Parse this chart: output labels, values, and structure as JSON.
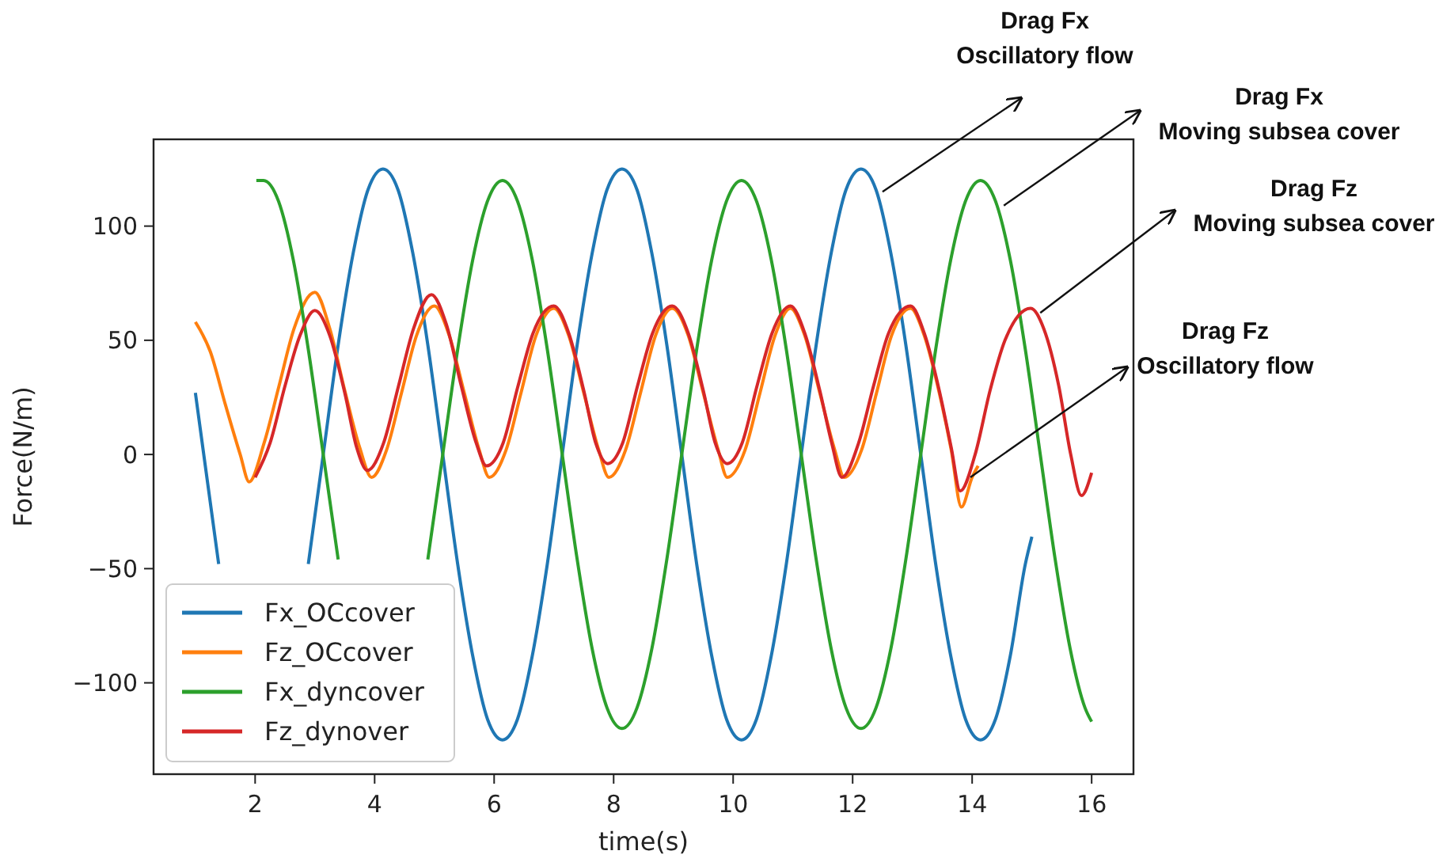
{
  "chart_data": {
    "type": "line",
    "xlabel": "time(s)",
    "ylabel": "Force(N/m)",
    "xlim": [
      0.3,
      16.7
    ],
    "ylim": [
      -140,
      138
    ],
    "xticks": [
      2,
      4,
      6,
      8,
      10,
      12,
      14,
      16
    ],
    "yticks": [
      -100,
      -50,
      0,
      50,
      100
    ],
    "grid": false,
    "legend": "bottom left",
    "marker": "none",
    "line_style": "solid",
    "series": [
      {
        "name": "Fx_OCcover",
        "color": "#1f77b4",
        "x": [
          1,
          1.14,
          1.39,
          1.64,
          1.89,
          2.14,
          2.39,
          2.64,
          2.89,
          3.14,
          3.39,
          3.64,
          3.89,
          4.14,
          4.39,
          4.64,
          4.89,
          5.14,
          5.39,
          5.64,
          5.89,
          6.14,
          6.39,
          6.64,
          6.89,
          7.14,
          7.39,
          7.64,
          7.89,
          8.14,
          8.39,
          8.64,
          8.89,
          9.14,
          9.39,
          9.64,
          9.89,
          10.14,
          10.39,
          10.64,
          10.89,
          11.14,
          11.39,
          11.64,
          11.89,
          12.14,
          12.39,
          12.64,
          12.89,
          13.14,
          13.39,
          13.64,
          13.89,
          14.14,
          14.39,
          14.64,
          14.89,
          15
        ],
        "values": [
          27,
          0,
          -48,
          null,
          null,
          null,
          null,
          null,
          -48,
          0,
          48,
          88,
          116,
          125,
          116,
          88,
          48,
          0,
          -48,
          -88,
          -116,
          -125,
          -116,
          -88,
          -48,
          0,
          48,
          88,
          116,
          125,
          116,
          88,
          48,
          0,
          -48,
          -88,
          -116,
          -125,
          -116,
          -88,
          -48,
          0,
          48,
          88,
          116,
          125,
          116,
          88,
          48,
          0,
          -48,
          -88,
          -116,
          -125,
          -116,
          -88,
          -48,
          -36
        ]
      },
      {
        "name": "Fz_OCcover",
        "color": "#ff7f0e",
        "x": [
          1,
          1.25,
          1.5,
          1.75,
          1.9,
          2.15,
          2.4,
          2.65,
          3,
          3.25,
          3.5,
          3.75,
          3.95,
          4.2,
          4.45,
          4.7,
          5,
          5.25,
          5.5,
          5.75,
          5.92,
          6.2,
          6.45,
          6.7,
          7,
          7.25,
          7.5,
          7.75,
          7.92,
          8.2,
          8.45,
          8.7,
          8.98,
          9.25,
          9.5,
          9.75,
          9.9,
          10.2,
          10.45,
          10.7,
          10.96,
          11.2,
          11.45,
          11.7,
          11.86,
          12.15,
          12.4,
          12.65,
          12.97,
          13.2,
          13.45,
          13.65,
          13.82,
          14,
          14.1
        ],
        "values": [
          58,
          45,
          22,
          0,
          -12,
          5,
          30,
          55,
          71,
          55,
          28,
          3,
          -10,
          2,
          27,
          52,
          65,
          52,
          27,
          2,
          -10,
          2,
          27,
          52,
          64,
          52,
          27,
          2,
          -10,
          2,
          27,
          52,
          64,
          52,
          27,
          2,
          -10,
          2,
          27,
          52,
          64,
          52,
          27,
          2,
          -10,
          2,
          27,
          52,
          64,
          52,
          27,
          2,
          -23,
          -10,
          -5
        ]
      },
      {
        "name": "Fx_dyncover",
        "color": "#2ca02c",
        "x": [
          2.02,
          2.14,
          2.39,
          2.64,
          2.89,
          3.14,
          3.39,
          3.64,
          3.89,
          4.14,
          4.39,
          4.64,
          4.89,
          5.14,
          5.39,
          5.64,
          5.89,
          6.14,
          6.39,
          6.64,
          6.89,
          7.14,
          7.39,
          7.64,
          7.89,
          8.14,
          8.39,
          8.64,
          8.89,
          9.14,
          9.39,
          9.64,
          9.89,
          10.14,
          10.39,
          10.64,
          10.89,
          11.14,
          11.39,
          11.64,
          11.89,
          12.14,
          12.39,
          12.64,
          12.89,
          13.14,
          13.39,
          13.64,
          13.89,
          14.14,
          14.39,
          14.64,
          14.89,
          15.14,
          15.39,
          15.64,
          15.89,
          16
        ],
        "values": [
          120,
          120,
          111,
          85,
          46,
          0,
          -46,
          null,
          null,
          null,
          null,
          null,
          -46,
          0,
          46,
          85,
          111,
          120,
          111,
          85,
          46,
          0,
          -46,
          -85,
          -111,
          -120,
          -111,
          -85,
          -46,
          0,
          46,
          85,
          111,
          120,
          111,
          85,
          46,
          0,
          -46,
          -85,
          -111,
          -120,
          -111,
          -85,
          -46,
          0,
          46,
          85,
          111,
          120,
          111,
          85,
          46,
          0,
          -46,
          -85,
          -111,
          -117
        ]
      },
      {
        "name": "Fz_dynover",
        "color": "#d62728",
        "x": [
          2,
          2.25,
          2.5,
          2.75,
          3,
          3.25,
          3.5,
          3.7,
          3.88,
          4.15,
          4.4,
          4.65,
          4.95,
          5.2,
          5.45,
          5.7,
          5.87,
          6.15,
          6.4,
          6.65,
          7,
          7.25,
          7.5,
          7.7,
          7.9,
          8.15,
          8.4,
          8.65,
          8.98,
          9.25,
          9.5,
          9.7,
          9.9,
          10.15,
          10.4,
          10.65,
          10.96,
          11.2,
          11.45,
          11.65,
          11.82,
          12.1,
          12.35,
          12.6,
          12.97,
          13.2,
          13.45,
          13.65,
          13.8,
          14.05,
          14.3,
          14.55,
          14.98,
          15.2,
          15.45,
          15.65,
          15.83,
          16
        ],
        "values": [
          -10,
          5,
          30,
          52,
          63,
          52,
          27,
          3,
          -7,
          5,
          30,
          55,
          70,
          57,
          30,
          5,
          -5,
          5,
          30,
          53,
          65,
          53,
          28,
          5,
          -4,
          5,
          30,
          53,
          65,
          53,
          28,
          5,
          -4,
          5,
          30,
          53,
          65,
          53,
          28,
          5,
          -10,
          5,
          30,
          53,
          65,
          53,
          28,
          3,
          -16,
          0,
          28,
          50,
          64,
          55,
          30,
          0,
          -18,
          -8
        ]
      }
    ],
    "annotations": [
      {
        "text": "Drag Fx\nOscillatory flow",
        "x": 12.5,
        "y": 115
      },
      {
        "text": "Drag Fx\nMoving subsea cover",
        "x": 14.53,
        "y": 109
      },
      {
        "text": "Drag Fz\nMoving subsea cover",
        "x": 15.14,
        "y": 62
      },
      {
        "text": "Drag Fz\nOscillatory flow",
        "x": 13.97,
        "y": -10
      }
    ]
  }
}
